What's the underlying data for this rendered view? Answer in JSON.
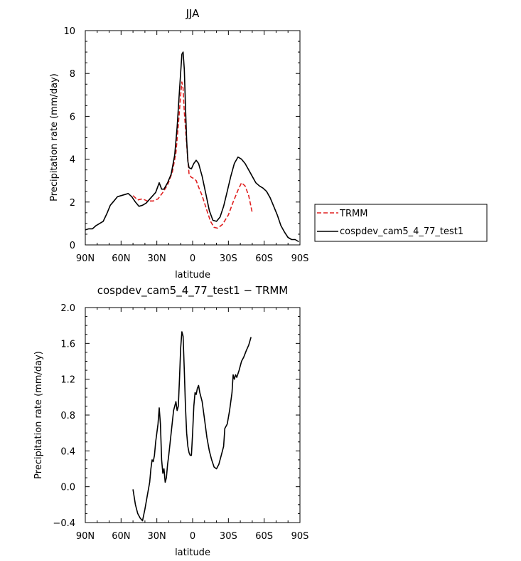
{
  "chart_data": [
    {
      "type": "line",
      "title": "JJA",
      "xlabel": "latitude",
      "ylabel": "Precipitation rate (mm/day)",
      "x_ticks": [
        "90N",
        "60N",
        "30N",
        "0",
        "30S",
        "60S",
        "90S"
      ],
      "y_ticks": [
        "0",
        "2",
        "4",
        "6",
        "8",
        "10"
      ],
      "xlim": [
        90,
        -90
      ],
      "ylim": [
        0,
        10
      ],
      "legend_position": "right",
      "series": [
        {
          "name": "TRMM",
          "color": "#e02020",
          "dash": true,
          "points": [
            [
              50,
              2.3
            ],
            [
              46,
              2.1
            ],
            [
              42,
              2.15
            ],
            [
              38,
              2.05
            ],
            [
              33,
              2.05
            ],
            [
              29,
              2.15
            ],
            [
              25,
              2.45
            ],
            [
              21,
              2.8
            ],
            [
              17,
              3.4
            ],
            [
              14,
              4.3
            ],
            [
              12,
              5.6
            ],
            [
              10,
              7.0
            ],
            [
              9,
              7.6
            ],
            [
              8,
              7.3
            ],
            [
              7,
              6.2
            ],
            [
              5,
              4.7
            ],
            [
              3,
              3.3
            ],
            [
              1,
              3.15
            ],
            [
              -1,
              3.1
            ],
            [
              -3,
              3.0
            ],
            [
              -5,
              2.7
            ],
            [
              -8,
              2.3
            ],
            [
              -12,
              1.6
            ],
            [
              -15,
              1.1
            ],
            [
              -18,
              0.82
            ],
            [
              -21,
              0.78
            ],
            [
              -25,
              0.95
            ],
            [
              -30,
              1.4
            ],
            [
              -34,
              2.0
            ],
            [
              -38,
              2.55
            ],
            [
              -41,
              2.9
            ],
            [
              -44,
              2.75
            ],
            [
              -47,
              2.3
            ],
            [
              -50,
              1.5
            ]
          ]
        },
        {
          "name": "cospdev_cam5_4_77_test1",
          "color": "#000000",
          "dash": false,
          "points": [
            [
              90,
              0.7
            ],
            [
              87,
              0.75
            ],
            [
              84,
              0.75
            ],
            [
              81,
              0.9
            ],
            [
              78,
              1.0
            ],
            [
              75,
              1.1
            ],
            [
              72,
              1.45
            ],
            [
              69,
              1.85
            ],
            [
              66,
              2.05
            ],
            [
              63,
              2.25
            ],
            [
              60,
              2.3
            ],
            [
              57,
              2.35
            ],
            [
              54,
              2.4
            ],
            [
              51,
              2.25
            ],
            [
              48,
              2.0
            ],
            [
              45,
              1.8
            ],
            [
              42,
              1.85
            ],
            [
              39,
              1.95
            ],
            [
              35,
              2.2
            ],
            [
              31,
              2.45
            ],
            [
              28,
              2.9
            ],
            [
              26,
              2.6
            ],
            [
              24,
              2.6
            ],
            [
              21,
              2.9
            ],
            [
              18,
              3.3
            ],
            [
              15,
              4.2
            ],
            [
              13,
              5.5
            ],
            [
              11,
              7.2
            ],
            [
              9,
              8.9
            ],
            [
              8,
              9.0
            ],
            [
              7,
              8.2
            ],
            [
              6,
              6.5
            ],
            [
              5,
              4.9
            ],
            [
              4,
              3.9
            ],
            [
              3,
              3.6
            ],
            [
              1,
              3.55
            ],
            [
              -1,
              3.8
            ],
            [
              -3,
              3.95
            ],
            [
              -5,
              3.8
            ],
            [
              -8,
              3.2
            ],
            [
              -11,
              2.4
            ],
            [
              -14,
              1.6
            ],
            [
              -17,
              1.15
            ],
            [
              -20,
              1.1
            ],
            [
              -23,
              1.3
            ],
            [
              -26,
              1.8
            ],
            [
              -29,
              2.5
            ],
            [
              -32,
              3.2
            ],
            [
              -35,
              3.8
            ],
            [
              -38,
              4.1
            ],
            [
              -41,
              4.0
            ],
            [
              -44,
              3.8
            ],
            [
              -47,
              3.5
            ],
            [
              -50,
              3.2
            ],
            [
              -53,
              2.9
            ],
            [
              -56,
              2.75
            ],
            [
              -59,
              2.65
            ],
            [
              -62,
              2.5
            ],
            [
              -65,
              2.2
            ],
            [
              -68,
              1.8
            ],
            [
              -71,
              1.4
            ],
            [
              -74,
              0.9
            ],
            [
              -77,
              0.6
            ],
            [
              -80,
              0.35
            ],
            [
              -83,
              0.25
            ],
            [
              -86,
              0.25
            ],
            [
              -89,
              0.15
            ]
          ]
        }
      ]
    },
    {
      "type": "line",
      "title": "cospdev_cam5_4_77_test1 − TRMM",
      "xlabel": "latitude",
      "ylabel": "Precipitation rate (mm/day)",
      "x_ticks": [
        "90N",
        "60N",
        "30N",
        "0",
        "30S",
        "60S",
        "90S"
      ],
      "y_ticks": [
        "−0.4",
        "0.0",
        "0.4",
        "0.8",
        "1.2",
        "1.6",
        "2.0"
      ],
      "xlim": [
        90,
        -90
      ],
      "ylim": [
        -0.4,
        2.0
      ],
      "series": [
        {
          "color": "#000000",
          "dash": false,
          "points": [
            [
              50,
              -0.03
            ],
            [
              48,
              -0.2
            ],
            [
              46,
              -0.3
            ],
            [
              44,
              -0.35
            ],
            [
              42,
              -0.38
            ],
            [
              40,
              -0.25
            ],
            [
              38,
              -0.1
            ],
            [
              36,
              0.05
            ],
            [
              35,
              0.2
            ],
            [
              34,
              0.3
            ],
            [
              33,
              0.28
            ],
            [
              32,
              0.35
            ],
            [
              31,
              0.5
            ],
            [
              29,
              0.7
            ],
            [
              28,
              0.88
            ],
            [
              27,
              0.7
            ],
            [
              26,
              0.3
            ],
            [
              25,
              0.15
            ],
            [
              24,
              0.2
            ],
            [
              23,
              0.05
            ],
            [
              22,
              0.1
            ],
            [
              21,
              0.25
            ],
            [
              20,
              0.35
            ],
            [
              18,
              0.6
            ],
            [
              16,
              0.85
            ],
            [
              14,
              0.95
            ],
            [
              13,
              0.85
            ],
            [
              12,
              0.9
            ],
            [
              11,
              1.2
            ],
            [
              10,
              1.55
            ],
            [
              9,
              1.73
            ],
            [
              8,
              1.68
            ],
            [
              7,
              1.3
            ],
            [
              6,
              0.9
            ],
            [
              5,
              0.6
            ],
            [
              4,
              0.45
            ],
            [
              3,
              0.38
            ],
            [
              2,
              0.35
            ],
            [
              1,
              0.35
            ],
            [
              0,
              0.6
            ],
            [
              -1,
              0.9
            ],
            [
              -2,
              1.05
            ],
            [
              -3,
              1.03
            ],
            [
              -4,
              1.1
            ],
            [
              -5,
              1.13
            ],
            [
              -6,
              1.05
            ],
            [
              -8,
              0.95
            ],
            [
              -10,
              0.75
            ],
            [
              -12,
              0.55
            ],
            [
              -14,
              0.4
            ],
            [
              -16,
              0.3
            ],
            [
              -18,
              0.22
            ],
            [
              -20,
              0.2
            ],
            [
              -22,
              0.25
            ],
            [
              -24,
              0.35
            ],
            [
              -26,
              0.45
            ],
            [
              -27,
              0.65
            ],
            [
              -29,
              0.7
            ],
            [
              -31,
              0.85
            ],
            [
              -33,
              1.05
            ],
            [
              -34,
              1.25
            ],
            [
              -35,
              1.2
            ],
            [
              -36,
              1.25
            ],
            [
              -37,
              1.22
            ],
            [
              -39,
              1.3
            ],
            [
              -41,
              1.4
            ],
            [
              -43,
              1.45
            ],
            [
              -45,
              1.52
            ],
            [
              -47,
              1.58
            ],
            [
              -49,
              1.67
            ]
          ]
        }
      ]
    }
  ]
}
